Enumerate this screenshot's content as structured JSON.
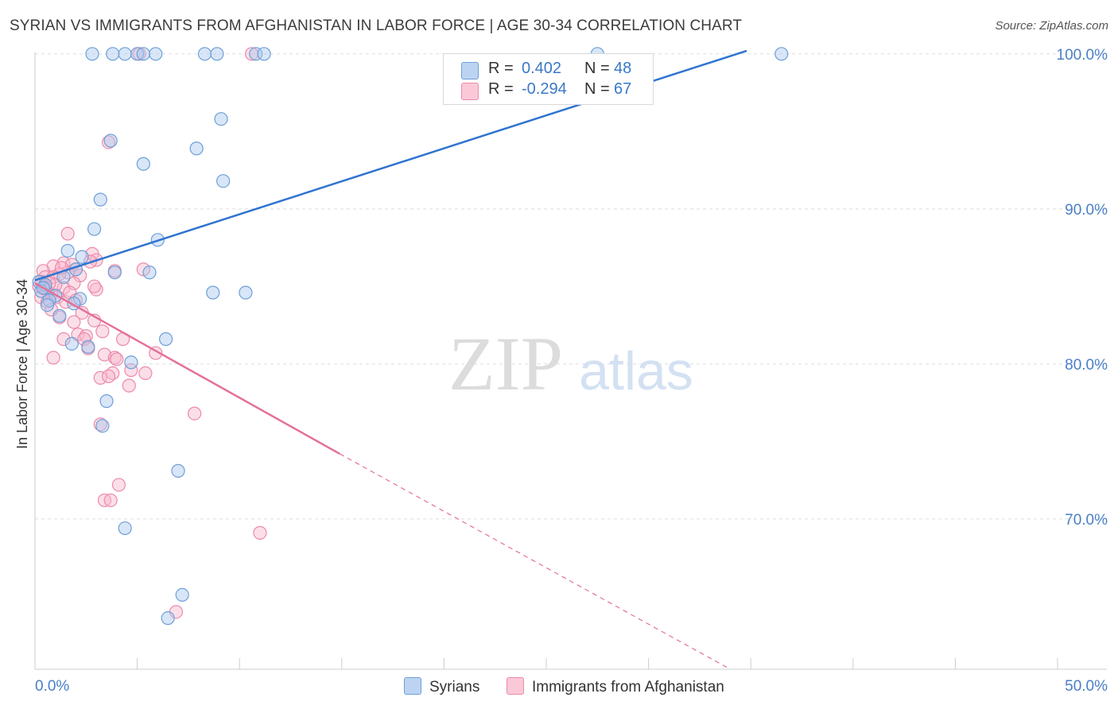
{
  "header": {
    "title": "SYRIAN VS IMMIGRANTS FROM AFGHANISTAN IN LABOR FORCE | AGE 30-34 CORRELATION CHART",
    "source": "Source: ZipAtlas.com"
  },
  "watermark": {
    "zip": "ZIP",
    "atlas": "atlas"
  },
  "legend": {
    "series1": {
      "r_label": "R =",
      "r_value": "0.402",
      "n_label": "N =",
      "n_value": "48"
    },
    "series2": {
      "r_label": "R =",
      "r_value": "-0.294",
      "n_label": "N =",
      "n_value": "67"
    }
  },
  "colors": {
    "blue_fill": "#a9c8ee",
    "blue_stroke": "#6e9fd9",
    "blue_line": "#2f74d0",
    "pink_fill": "#f6b8cb",
    "pink_stroke": "#ec8aaa",
    "pink_line": "#e4709a"
  },
  "chart_data": {
    "type": "scatter",
    "title": "SYRIAN VS IMMIGRANTS FROM AFGHANISTAN IN LABOR FORCE | AGE 30-34 CORRELATION CHART",
    "xlabel": "",
    "ylabel": "In Labor Force | Age 30-34",
    "xlim": [
      0,
      50
    ],
    "ylim": [
      60.3,
      100.4
    ],
    "x_tick_labels": [
      "0.0%",
      "50.0%"
    ],
    "y_ticks": [
      70,
      80,
      90,
      100
    ],
    "y_tick_labels": [
      "70.0%",
      "80.0%",
      "90.0%",
      "100.0%"
    ],
    "grid": true,
    "legend_placement": "bottom",
    "series": [
      {
        "name": "Syrians",
        "regression": {
          "x": [
            0,
            34.8
          ],
          "y": [
            85.4,
            100.2
          ],
          "dashed_to": null
        },
        "points": [
          [
            2.8,
            100
          ],
          [
            3.8,
            100
          ],
          [
            4.4,
            100
          ],
          [
            5.0,
            100
          ],
          [
            5.3,
            100
          ],
          [
            5.9,
            100
          ],
          [
            8.3,
            100
          ],
          [
            8.9,
            100
          ],
          [
            10.8,
            100
          ],
          [
            11.2,
            100
          ],
          [
            27.5,
            100
          ],
          [
            36.5,
            100
          ],
          [
            9.1,
            95.8
          ],
          [
            3.7,
            94.4
          ],
          [
            7.9,
            93.9
          ],
          [
            5.3,
            92.9
          ],
          [
            9.2,
            91.8
          ],
          [
            3.2,
            90.6
          ],
          [
            2.9,
            88.7
          ],
          [
            6.0,
            88.0
          ],
          [
            1.6,
            87.3
          ],
          [
            2.3,
            86.9
          ],
          [
            2.0,
            86.1
          ],
          [
            3.9,
            85.9
          ],
          [
            5.6,
            85.9
          ],
          [
            0.2,
            85.3
          ],
          [
            0.5,
            85.1
          ],
          [
            0.3,
            84.7
          ],
          [
            8.7,
            84.6
          ],
          [
            10.3,
            84.6
          ],
          [
            1.0,
            84.4
          ],
          [
            0.7,
            84.1
          ],
          [
            2.2,
            84.2
          ],
          [
            0.6,
            83.8
          ],
          [
            1.9,
            83.9
          ],
          [
            1.2,
            83.1
          ],
          [
            6.4,
            81.6
          ],
          [
            1.8,
            81.3
          ],
          [
            2.6,
            81.1
          ],
          [
            4.7,
            80.1
          ],
          [
            3.5,
            77.6
          ],
          [
            3.3,
            76.0
          ],
          [
            7.0,
            73.1
          ],
          [
            4.4,
            69.4
          ],
          [
            7.2,
            65.1
          ],
          [
            6.5,
            63.6
          ],
          [
            0.4,
            84.9
          ],
          [
            1.4,
            85.6
          ]
        ]
      },
      {
        "name": "Immigrants from Afghanistan",
        "regression": {
          "x": [
            0,
            14.9
          ],
          "y": [
            85.2,
            74.2
          ],
          "dashed_to": {
            "x": 34.0,
            "y": 60.3
          }
        },
        "points": [
          [
            5.1,
            100
          ],
          [
            10.6,
            100
          ],
          [
            3.6,
            94.3
          ],
          [
            1.6,
            88.4
          ],
          [
            2.8,
            87.1
          ],
          [
            3.0,
            86.7
          ],
          [
            1.4,
            86.5
          ],
          [
            0.9,
            86.3
          ],
          [
            1.8,
            86.4
          ],
          [
            2.0,
            86.1
          ],
          [
            0.4,
            86.0
          ],
          [
            1.6,
            85.9
          ],
          [
            5.3,
            86.1
          ],
          [
            3.9,
            86.0
          ],
          [
            0.5,
            85.6
          ],
          [
            0.9,
            85.6
          ],
          [
            1.2,
            85.8
          ],
          [
            2.2,
            85.7
          ],
          [
            0.3,
            85.3
          ],
          [
            1.9,
            85.2
          ],
          [
            0.2,
            85.0
          ],
          [
            1.4,
            84.9
          ],
          [
            3.0,
            84.8
          ],
          [
            0.6,
            84.7
          ],
          [
            0.8,
            84.5
          ],
          [
            1.1,
            84.3
          ],
          [
            0.3,
            84.3
          ],
          [
            0.6,
            84.0
          ],
          [
            1.5,
            84.0
          ],
          [
            2.3,
            83.3
          ],
          [
            1.2,
            83.0
          ],
          [
            2.9,
            82.8
          ],
          [
            2.1,
            81.9
          ],
          [
            2.5,
            81.8
          ],
          [
            1.4,
            81.6
          ],
          [
            4.3,
            81.6
          ],
          [
            2.4,
            81.6
          ],
          [
            2.6,
            81.0
          ],
          [
            3.4,
            80.6
          ],
          [
            5.9,
            80.7
          ],
          [
            0.9,
            80.4
          ],
          [
            3.9,
            80.4
          ],
          [
            4.7,
            79.6
          ],
          [
            3.8,
            79.4
          ],
          [
            5.4,
            79.4
          ],
          [
            3.2,
            79.1
          ],
          [
            3.6,
            79.2
          ],
          [
            4.6,
            78.6
          ],
          [
            7.8,
            76.8
          ],
          [
            3.2,
            76.1
          ],
          [
            4.1,
            72.2
          ],
          [
            3.4,
            71.2
          ],
          [
            3.7,
            71.2
          ],
          [
            11.0,
            69.1
          ],
          [
            6.9,
            64.0
          ],
          [
            1.0,
            85.1
          ],
          [
            2.7,
            86.6
          ],
          [
            0.7,
            85.2
          ],
          [
            1.7,
            84.6
          ],
          [
            2.9,
            85.0
          ],
          [
            4.0,
            80.3
          ],
          [
            1.3,
            86.2
          ],
          [
            0.5,
            84.9
          ],
          [
            2.0,
            84.1
          ],
          [
            3.3,
            82.1
          ],
          [
            1.9,
            82.7
          ],
          [
            0.8,
            83.5
          ]
        ]
      }
    ]
  }
}
